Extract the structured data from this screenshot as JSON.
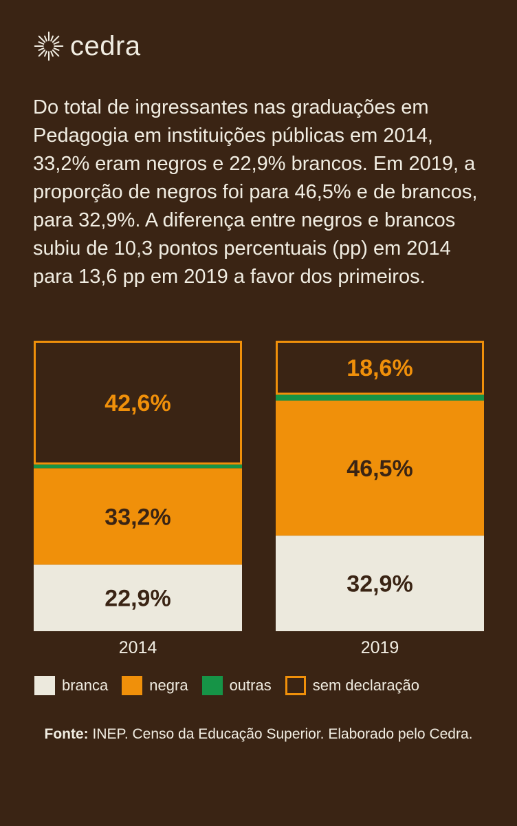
{
  "brand": {
    "name": "cedra",
    "logo_icon": "sunburst-icon"
  },
  "intro_text": "Do total de ingressantes nas graduações em Pedagogia em instituições públicas em 2014, 33,2% eram negros e 22,9% brancos. Em 2019, a proporção de negros foi para 46,5% e de brancos, para 32,9%. A diferença entre negros e brancos subiu de 10,3 pontos percentuais (pp) em 2014 para 13,6 pp em 2019 a favor dos primeiros.",
  "chart_data": {
    "type": "bar",
    "stacked": true,
    "categories": [
      "2014",
      "2019"
    ],
    "series": [
      {
        "name": "branca",
        "values": [
          22.9,
          32.9
        ],
        "labels": [
          "22,9%",
          "32,9%"
        ],
        "color": "#ece9dd"
      },
      {
        "name": "negra",
        "values": [
          33.2,
          46.5
        ],
        "labels": [
          "33,2%",
          "46,5%"
        ],
        "color": "#f0900a"
      },
      {
        "name": "outras",
        "values": [
          1.3,
          2.0
        ],
        "labels": [
          "",
          ""
        ],
        "color": "#169447"
      },
      {
        "name": "sem declaração",
        "values": [
          42.6,
          18.6
        ],
        "labels": [
          "42,6%",
          "18,6%"
        ],
        "color": "#3a2414",
        "stroke": "#f0900a"
      }
    ],
    "ylim": [
      0,
      100
    ],
    "legend_position": "bottom"
  },
  "source": {
    "label": "Fonte:",
    "text": " INEP. Censo da Educação Superior. Elaborado pelo Cedra."
  },
  "colors": {
    "background": "#3a2414",
    "text": "#f1ede2",
    "label_dark": "#3a2414",
    "label_orange": "#f0900a"
  }
}
